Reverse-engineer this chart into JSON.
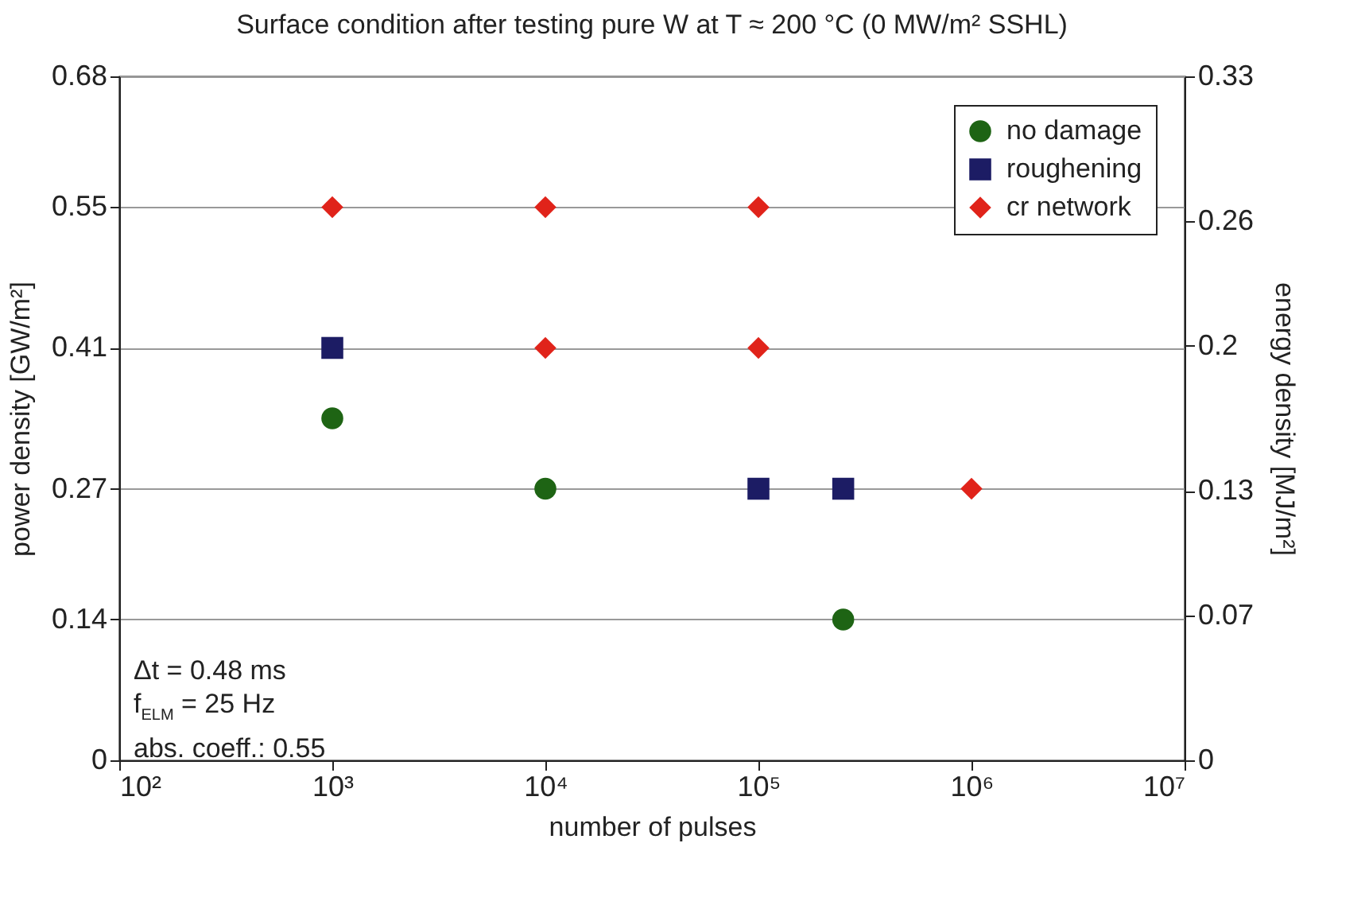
{
  "chart_data": {
    "type": "scatter",
    "title": "Surface condition after testing pure W at T ≈ 200 °C (0 MW/m² SSHL)",
    "xlabel": "number of pulses",
    "ylabel": "power density [GW/m²]",
    "y2label": "energy density [MJ/m²]",
    "log": "x",
    "xlim": [
      100,
      10000000
    ],
    "xticks": [
      {
        "value": 100,
        "label": "10²"
      },
      {
        "value": 1000,
        "label": "10³"
      },
      {
        "value": 10000,
        "label": "10⁴"
      },
      {
        "value": 100000,
        "label": "10⁵"
      },
      {
        "value": 1000000,
        "label": "10⁶"
      },
      {
        "value": 10000000,
        "label": "10⁷"
      }
    ],
    "ylim": [
      0,
      0.68
    ],
    "yticks": [
      0,
      0.14,
      0.27,
      0.41,
      0.55,
      0.68
    ],
    "y2lim": [
      0,
      0.33
    ],
    "y2ticks": [
      0,
      0.07,
      0.13,
      0.2,
      0.26,
      0.33
    ],
    "grid": "y",
    "legend": "top right",
    "series": [
      {
        "name": "no damage",
        "color": "#1e6414",
        "marker": "circle",
        "x": [
          1000,
          10000,
          250000
        ],
        "values": [
          0.34,
          0.27,
          0.14
        ]
      },
      {
        "name": "roughening",
        "color": "#1c1c64",
        "marker": "square",
        "x": [
          1000,
          100000,
          250000
        ],
        "values": [
          0.41,
          0.27,
          0.27
        ]
      },
      {
        "name": "cr network",
        "color": "#e0231a",
        "marker": "diamond",
        "x": [
          1000,
          10000,
          100000,
          10000,
          100000,
          1000000
        ],
        "values": [
          0.55,
          0.55,
          0.55,
          0.41,
          0.41,
          0.27
        ]
      }
    ],
    "annotations": [
      "Δt = 0.48 ms",
      "f$_{ELM}$ = 25 Hz",
      "abs. coeff.: 0.55"
    ]
  }
}
